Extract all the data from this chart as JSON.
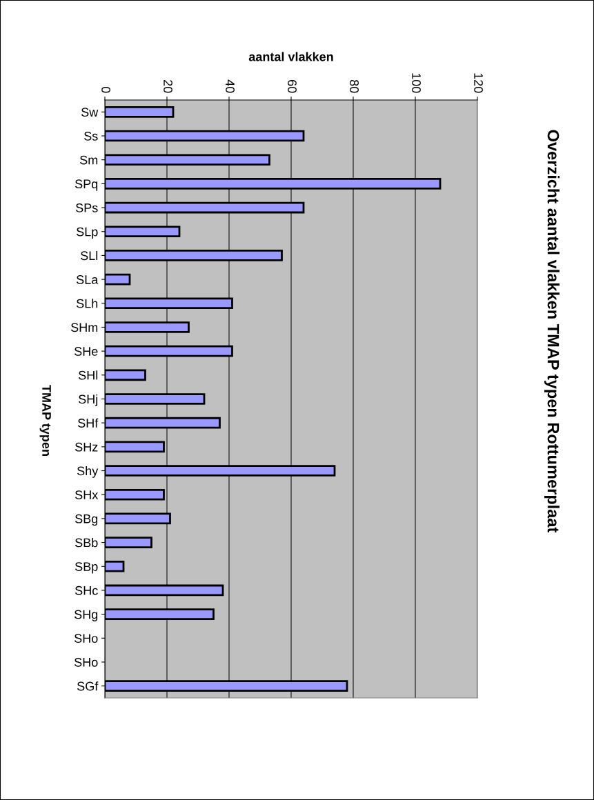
{
  "chart_data": {
    "type": "bar",
    "orientation": "horizontal",
    "title": "Overzicht aantal vlakken TMAP typen Rottumerplaat",
    "xlabel": "aantal vlakken",
    "ylabel": "TMAP typen",
    "categories": [
      "Sw",
      "Ss",
      "Sm",
      "SPq",
      "SPs",
      "SLp",
      "SLl",
      "SLa",
      "SLh",
      "SHm",
      "SHe",
      "SHl",
      "SHj",
      "SHf",
      "SHz",
      "Shy",
      "SHx",
      "SBg",
      "SBb",
      "SBp",
      "SHc",
      "SHg",
      "SHo",
      "SHo",
      "SGf"
    ],
    "values": [
      22,
      64,
      53,
      108,
      64,
      24,
      57,
      8,
      41,
      27,
      41,
      13,
      32,
      37,
      19,
      74,
      19,
      21,
      15,
      6,
      38,
      35,
      null,
      null,
      78
    ],
    "color": "#9999ff",
    "xlim": [
      0,
      120
    ],
    "xticks": [
      0,
      20,
      40,
      60,
      80,
      100,
      120
    ],
    "grid": "x"
  }
}
